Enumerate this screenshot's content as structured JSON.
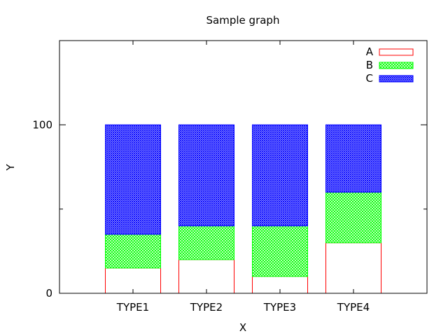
{
  "chart_data": {
    "type": "bar",
    "stacked": true,
    "title": "Sample graph",
    "xlabel": "X",
    "ylabel": "Y",
    "categories": [
      "TYPE1",
      "TYPE2",
      "TYPE3",
      "TYPE4"
    ],
    "series": [
      {
        "name": "A",
        "values": [
          15,
          20,
          10,
          30
        ],
        "color": "#ff0000",
        "fill": "empty"
      },
      {
        "name": "B",
        "values": [
          20,
          20,
          30,
          30
        ],
        "color": "#00ff00",
        "fill": "crosshatch"
      },
      {
        "name": "C",
        "values": [
          65,
          60,
          60,
          40
        ],
        "color": "#0000ff",
        "fill": "crosshatch"
      }
    ],
    "ylim": [
      0,
      150
    ],
    "yticks": [
      0,
      100
    ],
    "ytick_labels": [
      "0",
      "100"
    ],
    "grid": false,
    "legend": "top-right"
  }
}
